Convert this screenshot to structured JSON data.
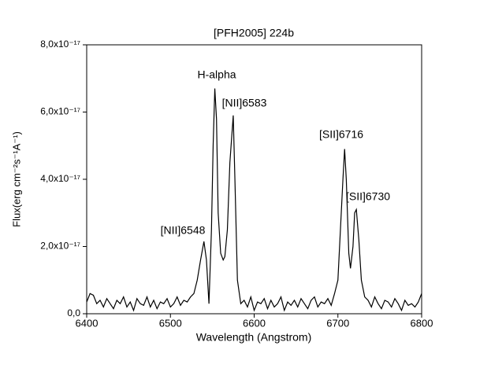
{
  "chart_data": {
    "type": "line",
    "title": "[PFH2005] 224b",
    "x_label": "Wavelength (Angstrom)",
    "y_label": "Flux(erg cm⁻²s⁻¹A⁻¹)",
    "xlim": [
      6400,
      6800
    ],
    "xticks": [
      6400,
      6500,
      6600,
      6700,
      6800
    ],
    "ylim": [
      0,
      8e-17
    ],
    "yticks": [
      {
        "value": 0,
        "label": "0,0"
      },
      {
        "value": 2e-17,
        "label": "2,0x10⁻¹⁷"
      },
      {
        "value": 4e-17,
        "label": "4,0x10⁻¹⁷"
      },
      {
        "value": 6e-17,
        "label": "6,0x10⁻¹⁷"
      },
      {
        "value": 8e-17,
        "label": "8,0x10⁻¹⁷"
      }
    ],
    "annotations": [
      "[NII]6548",
      "H-alpha",
      "[NII]6583",
      "[SII]6716",
      "[SII]6730"
    ],
    "series": [
      {
        "color": "#000000",
        "x": [
          6400,
          6404,
          6408,
          6412,
          6416,
          6420,
          6424,
          6428,
          6432,
          6436,
          6440,
          6444,
          6448,
          6452,
          6456,
          6460,
          6464,
          6468,
          6472,
          6476,
          6480,
          6484,
          6488,
          6492,
          6496,
          6500,
          6504,
          6508,
          6512,
          6516,
          6520,
          6524,
          6528,
          6532,
          6536,
          6540,
          6543,
          6546,
          6549,
          6551,
          6553,
          6555,
          6557,
          6560,
          6563,
          6565,
          6568,
          6571,
          6575,
          6577,
          6580,
          6584,
          6588,
          6592,
          6596,
          6600,
          6604,
          6608,
          6612,
          6616,
          6620,
          6624,
          6628,
          6632,
          6636,
          6640,
          6644,
          6648,
          6652,
          6656,
          6660,
          6664,
          6668,
          6672,
          6676,
          6680,
          6684,
          6688,
          6692,
          6696,
          6700,
          6703,
          6706,
          6708,
          6710,
          6713,
          6715,
          6718,
          6720,
          6722,
          6725,
          6728,
          6732,
          6736,
          6740,
          6744,
          6748,
          6752,
          6756,
          6760,
          6764,
          6768,
          6772,
          6776,
          6780,
          6784,
          6788,
          6792,
          6796,
          6800
        ],
        "values": [
          3.5e-18,
          6e-18,
          5.5e-18,
          3e-18,
          4e-18,
          2e-18,
          4.5e-18,
          3e-18,
          1.5e-18,
          4e-18,
          3e-18,
          5e-18,
          2e-18,
          3.5e-18,
          1e-18,
          4.5e-18,
          3e-18,
          2.5e-18,
          5e-18,
          2e-18,
          4e-18,
          1.5e-18,
          3.5e-18,
          3e-18,
          4.5e-18,
          2e-18,
          3e-18,
          5e-18,
          2.5e-18,
          4e-18,
          3.5e-18,
          5e-18,
          6e-18,
          1e-17,
          1.6e-17,
          2.15e-17,
          1.6e-17,
          3e-18,
          2.5e-17,
          5e-17,
          6.7e-17,
          5.8e-17,
          3e-17,
          1.8e-17,
          1.6e-17,
          1.7e-17,
          2.5e-17,
          4.5e-17,
          5.9e-17,
          4e-17,
          1e-17,
          3e-18,
          4e-18,
          2e-18,
          5e-18,
          1e-18,
          3.5e-18,
          3e-18,
          4.5e-18,
          1.5e-18,
          4e-18,
          2e-18,
          3e-18,
          5e-18,
          1e-18,
          3.5e-18,
          2.5e-18,
          4e-18,
          2e-18,
          4.5e-18,
          3e-18,
          1.5e-18,
          4e-18,
          5e-18,
          2e-18,
          3.5e-18,
          3e-18,
          4.5e-18,
          2.5e-18,
          6e-18,
          1e-17,
          2.5e-17,
          4e-17,
          4.9e-17,
          4e-17,
          1.8e-17,
          1.35e-17,
          2e-17,
          3e-17,
          3.1e-17,
          2.2e-17,
          1e-17,
          5e-18,
          4e-18,
          2e-18,
          5e-18,
          3e-18,
          1.5e-18,
          4e-18,
          3.5e-18,
          2e-18,
          4.5e-18,
          3e-18,
          1e-18,
          4e-18,
          2.5e-18,
          3e-18,
          2e-18,
          3.5e-18,
          6e-18
        ]
      }
    ]
  }
}
